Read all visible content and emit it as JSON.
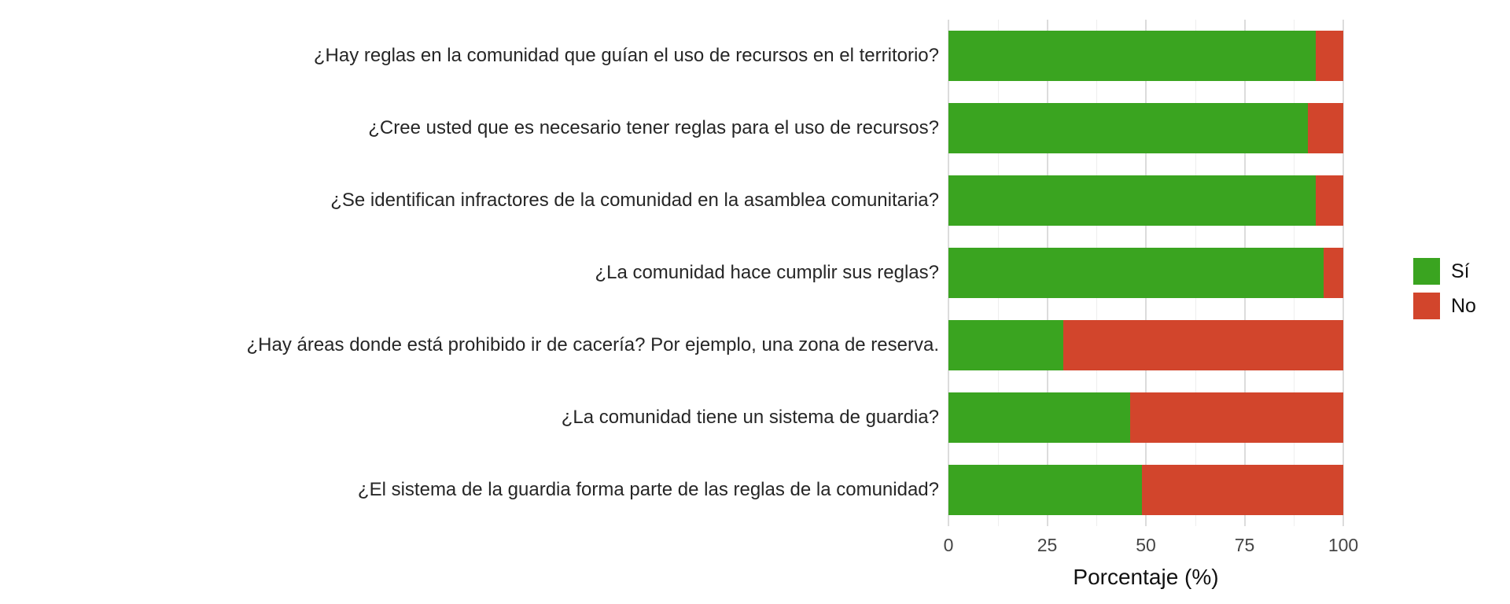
{
  "chart_data": {
    "type": "bar",
    "orientation": "horizontal",
    "stacked": true,
    "percent": true,
    "title": "",
    "xlabel": "Porcentaje (%)",
    "ylabel": "",
    "xlim": [
      0,
      100
    ],
    "xticks": [
      0,
      25,
      50,
      75,
      100
    ],
    "xticklabels": [
      "0",
      "25",
      "50",
      "75",
      "100"
    ],
    "grid": "vertical major+minor, light gray on white",
    "legend_position": "right",
    "categories": [
      "¿Hay reglas en la comunidad que guían el uso de recursos en el territorio?",
      "¿Cree usted que es necesario tener reglas para el uso de recursos?",
      "¿Se identifican infractores de la comunidad en la asamblea comunitaria?",
      "¿La comunidad hace cumplir sus reglas?",
      "¿Hay áreas donde está prohibido ir de cacería? Por ejemplo, una zona de reserva.",
      "¿La comunidad tiene un sistema de guardia?",
      "¿El sistema de la guardia forma parte de las reglas de la comunidad?"
    ],
    "series": [
      {
        "name": "Sí",
        "color": "#3AA420",
        "values": [
          93,
          91,
          93,
          95,
          29,
          46,
          49
        ]
      },
      {
        "name": "No",
        "color": "#D2452C",
        "values": [
          7,
          9,
          7,
          5,
          71,
          54,
          51
        ]
      }
    ]
  },
  "style": {
    "background": "#ffffff",
    "grid_major": "#dcdcdc",
    "grid_minor": "#eeeeee",
    "label_text": "#262626",
    "tick_text": "#454545"
  }
}
